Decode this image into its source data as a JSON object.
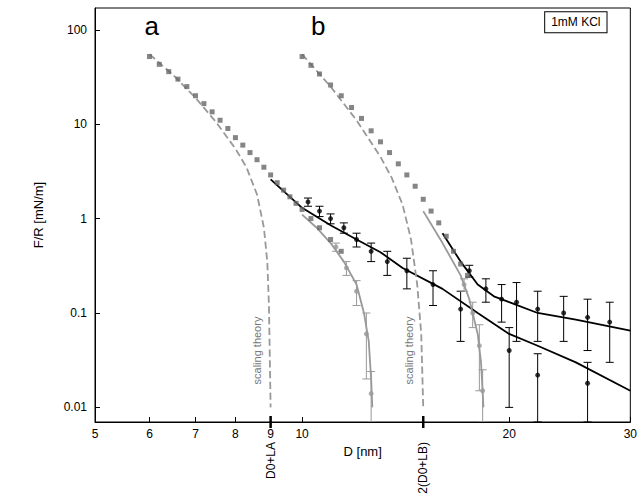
{
  "chart_data": {
    "type": "scatter",
    "x_label": "D [nm]",
    "y_label": "F/R [mN/m]",
    "log": true,
    "grid": false,
    "xlim": [
      5,
      30
    ],
    "ylim": [
      0.007,
      170
    ],
    "xticks": [
      5,
      6,
      7,
      8,
      9,
      10,
      20,
      30
    ],
    "yticks": [
      0.01,
      0.1,
      1,
      10,
      100
    ],
    "series": [
      {
        "type": "scatter",
        "color": "#666666",
        "marker": "square",
        "x": [
          6.0,
          6.2,
          6.4,
          6.6,
          6.8,
          7.0,
          7.2,
          7.4,
          7.6,
          7.8,
          8.0,
          8.2,
          8.4,
          8.6,
          8.8,
          9.0,
          9.2,
          9.4,
          9.6,
          9.8,
          10.0,
          10.3,
          10.6,
          11.0,
          11.4
        ],
        "values": [
          52,
          43,
          36,
          30,
          25,
          20,
          16.5,
          13.5,
          11,
          9,
          7.2,
          6,
          5,
          4.2,
          3.5,
          2.9,
          2.4,
          2.0,
          1.7,
          1.45,
          1.25,
          1.0,
          0.8,
          0.6,
          0.45
        ]
      },
      {
        "type": "line",
        "color": "#000000",
        "line_style": "solid",
        "x": [
          9,
          10,
          11,
          12,
          13,
          14,
          16,
          18,
          20,
          22,
          25,
          30
        ],
        "values": [
          2.6,
          1.3,
          0.85,
          0.6,
          0.44,
          0.3,
          0.18,
          0.1,
          0.06,
          0.045,
          0.03,
          0.015
        ]
      },
      {
        "type": "scatter",
        "color": "#000000",
        "marker": "circle",
        "x": [
          10.2,
          10.6,
          11.0,
          11.5,
          12.0,
          12.6,
          13.3,
          14.2,
          15.5,
          17,
          20,
          22,
          26
        ],
        "values": [
          1.5,
          1.2,
          1.0,
          0.8,
          0.6,
          0.45,
          0.35,
          0.28,
          0.2,
          0.11,
          0.04,
          0.022,
          0.018
        ],
        "errors": [
          0.15,
          0.15,
          0.12,
          0.1,
          0.1,
          0.1,
          0.1,
          0.1,
          0.08,
          0.06,
          0.03,
          0.015,
          0.012
        ]
      },
      {
        "type": "line",
        "color": "#999999",
        "line_style": "solid",
        "x": [
          10,
          10.5,
          11,
          11.5,
          12,
          12.3,
          12.5,
          12.6,
          12.65
        ],
        "values": [
          1.1,
          0.8,
          0.55,
          0.35,
          0.2,
          0.1,
          0.05,
          0.02,
          0.01
        ]
      },
      {
        "type": "scatter",
        "color": "#999999",
        "marker": "circle",
        "x": [
          11.2,
          11.6,
          12.0,
          12.4,
          12.6
        ],
        "values": [
          0.5,
          0.3,
          0.17,
          0.06,
          0.014
        ],
        "errors": [
          0.05,
          0.05,
          0.05,
          0.04,
          0.01
        ]
      },
      {
        "type": "line",
        "color": "#999999",
        "line_style": "dashed",
        "x": [
          6,
          6.5,
          7,
          7.5,
          8,
          8.3,
          8.6,
          8.8,
          8.9,
          8.95,
          9.0
        ],
        "values": [
          55,
          33,
          19,
          10.5,
          5.5,
          3.5,
          1.8,
          0.8,
          0.35,
          0.12,
          0.01
        ]
      },
      {
        "type": "scatter",
        "color": "#666666",
        "marker": "square",
        "x": [
          10.0,
          10.3,
          10.6,
          11,
          11.4,
          11.8,
          12.2,
          12.6,
          13,
          13.4,
          13.8,
          14.2,
          14.6,
          15,
          15.4,
          15.8,
          16.2,
          16.6,
          17,
          17.4
        ],
        "values": [
          52,
          42,
          34,
          26,
          20,
          15,
          11.5,
          8.5,
          6.5,
          5,
          3.8,
          2.9,
          2.2,
          1.6,
          1.2,
          0.9,
          0.65,
          0.45,
          0.33,
          0.25
        ]
      },
      {
        "type": "line",
        "color": "#000000",
        "line_style": "solid",
        "x": [
          16,
          17,
          18,
          19,
          20,
          22,
          25,
          30
        ],
        "values": [
          0.7,
          0.35,
          0.2,
          0.15,
          0.13,
          0.1,
          0.085,
          0.065
        ]
      },
      {
        "type": "scatter",
        "color": "#000000",
        "marker": "circle",
        "x": [
          17.5,
          18.5,
          19.5,
          20.5,
          22,
          24,
          26,
          28
        ],
        "values": [
          0.28,
          0.18,
          0.14,
          0.13,
          0.11,
          0.1,
          0.09,
          0.08
        ],
        "errors": [
          0.04,
          0.05,
          0.06,
          0.08,
          0.06,
          0.05,
          0.05,
          0.05
        ]
      },
      {
        "type": "line",
        "color": "#999999",
        "line_style": "solid",
        "x": [
          15,
          16,
          17,
          17.5,
          18,
          18.2,
          18.35
        ],
        "values": [
          1.2,
          0.55,
          0.25,
          0.14,
          0.06,
          0.03,
          0.01
        ]
      },
      {
        "type": "scatter",
        "color": "#999999",
        "marker": "circle",
        "x": [
          17.2,
          17.7,
          18.1,
          18.3
        ],
        "values": [
          0.2,
          0.1,
          0.045,
          0.015
        ],
        "errors": [
          0.03,
          0.03,
          0.03,
          0.01
        ]
      },
      {
        "type": "line",
        "color": "#999999",
        "line_style": "dashed",
        "x": [
          10,
          11,
          12,
          13,
          13.5,
          14,
          14.4,
          14.7,
          14.9,
          15
        ],
        "values": [
          55,
          25,
          11,
          4.5,
          2.7,
          1.4,
          0.6,
          0.2,
          0.06,
          0.01
        ]
      }
    ],
    "annotations": [
      {
        "text": "a",
        "x": 5.9,
        "y": 110
      },
      {
        "text": "b",
        "x": 10.3,
        "y": 110
      }
    ],
    "vertical_annotations": [
      {
        "text": "scaling theory",
        "x": 8.6,
        "y": 0.04
      },
      {
        "text": "scaling theory",
        "x": 14.3,
        "y": 0.04
      }
    ],
    "boxed_annotations": [
      {
        "text": "1mM KCl",
        "x": 25,
        "y": 120
      }
    ],
    "axis_marks": [
      {
        "x": 9,
        "label": "D0+LA"
      },
      {
        "x": 15,
        "label": "2(D0+LB)"
      }
    ]
  }
}
